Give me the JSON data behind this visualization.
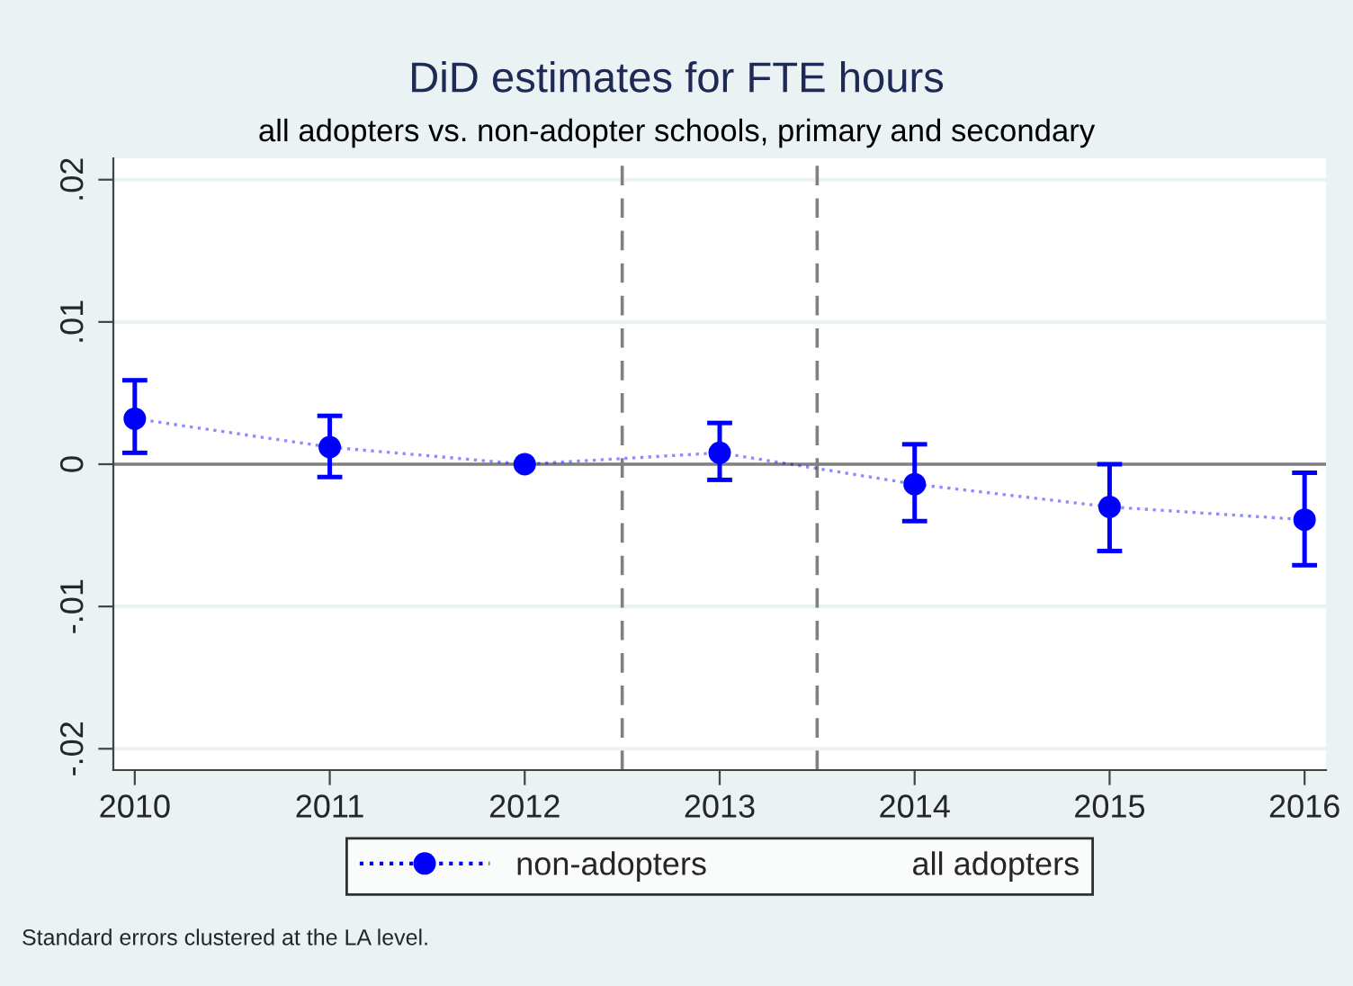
{
  "chart_data": {
    "type": "line",
    "title": "DiD estimates for FTE hours",
    "subtitle": "all adopters vs. non-adopter schools, primary and secondary",
    "x": [
      2010,
      2011,
      2012,
      2013,
      2014,
      2015,
      2016
    ],
    "series": [
      {
        "name": "non-adopters",
        "color": "#0000ff",
        "values": [
          0.0032,
          0.0012,
          0,
          0.0008,
          -0.0014,
          -0.003,
          -0.0039
        ],
        "errors": [
          [
            0.0008,
            0.0059
          ],
          [
            -0.0009,
            0.0034
          ],
          null,
          [
            -0.0011,
            0.0029
          ],
          [
            -0.004,
            0.0014
          ],
          [
            -0.0061,
            0.0
          ],
          [
            -0.0071,
            -0.0006
          ]
        ]
      },
      {
        "name": "all adopters",
        "values": [
          null,
          null,
          null,
          null,
          null,
          null,
          null
        ]
      }
    ],
    "marker": "circle",
    "line_style": "dotted",
    "xlim": [
      2009.89,
      2016.11
    ],
    "xticks": [
      2010,
      2011,
      2012,
      2013,
      2014,
      2015,
      2016
    ],
    "ylim": [
      -0.0215,
      0.0215
    ],
    "yticks": [
      {
        "value": -0.02,
        "label": "-.02"
      },
      {
        "value": -0.01,
        "label": "-.01"
      },
      0,
      {
        "value": 0.01,
        "label": ".01"
      },
      {
        "value": 0.02,
        "label": ".02"
      }
    ],
    "grid": "y",
    "legend": "bottom",
    "ref_lines": [
      {
        "axis": "y",
        "value": 0,
        "color": "#808080",
        "line_style": "solid"
      },
      {
        "axis": "x",
        "value": 2012.5,
        "color": "#808080",
        "line_style": "dashed"
      },
      {
        "axis": "x",
        "value": 2013.5,
        "color": "#808080",
        "line_style": "dashed"
      }
    ],
    "annotations": [
      "Standard errors clustered at the LA level."
    ]
  }
}
